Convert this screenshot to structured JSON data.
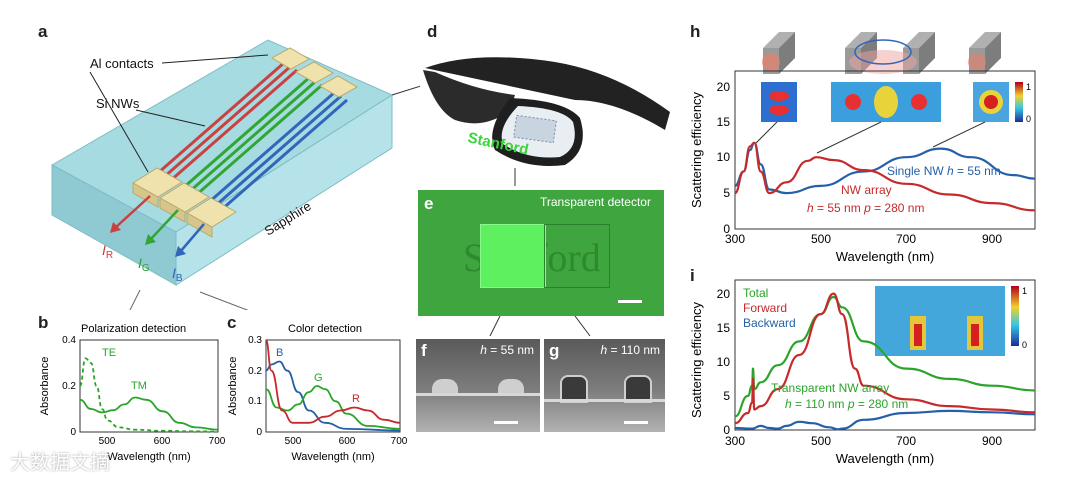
{
  "panel_letters": {
    "a": "a",
    "b": "b",
    "c": "c",
    "d": "d",
    "e": "e",
    "f": "f",
    "g": "g",
    "h": "h",
    "i": "i"
  },
  "panel_a": {
    "al_contacts": "Al contacts",
    "si_nws": "Si NWs",
    "sapphire": "Sapphire",
    "current_labels": [
      {
        "main": "I",
        "sub": "R",
        "color": "#d23a3a"
      },
      {
        "main": "I",
        "sub": "G",
        "color": "#2fa32f"
      },
      {
        "main": "I",
        "sub": "B",
        "color": "#2e64b8"
      }
    ]
  },
  "panel_b": {
    "title": "Polarization detection",
    "ylabel": "Absorbance",
    "xlabel": "Wavelength (nm)",
    "yticks": [
      "0",
      "0.2",
      "0.4"
    ],
    "xticks": [
      "500",
      "600",
      "700"
    ],
    "series_labels": [
      "TE",
      "TM"
    ]
  },
  "panel_c": {
    "title": "Color detection",
    "ylabel": "Absorbance",
    "xlabel": "Wavelength (nm)",
    "yticks": [
      "0",
      "0.1",
      "0.2",
      "0.3"
    ],
    "xticks": [
      "500",
      "600",
      "700"
    ],
    "series_labels": [
      "B",
      "G",
      "R"
    ]
  },
  "panel_d": {
    "logo_text": "Stanford"
  },
  "panel_e": {
    "caption": "Transparent detector",
    "background_text": "Stanford"
  },
  "panel_f": {
    "h_label": "h",
    "h_value": " = 55 nm"
  },
  "panel_g": {
    "h_label": "h",
    "h_value": " = 110 nm"
  },
  "panel_h": {
    "ylabel": "Scattering efficiency",
    "xlabel": "Wavelength (nm)",
    "yticks": [
      "0",
      "5",
      "10",
      "15",
      "20"
    ],
    "xticks": [
      "300",
      "500",
      "700",
      "900"
    ],
    "single_nw": {
      "text": "Single NW ",
      "var": "h",
      "rest": " = 55 nm"
    },
    "nw_array_title": "NW array",
    "nw_array_params": {
      "var1": "h",
      "rest1": " = 55 nm ",
      "var2": "p",
      "rest2": " = 280 nm"
    },
    "colorbar": [
      "1",
      "0"
    ]
  },
  "panel_i": {
    "ylabel": "Scattering efficiency",
    "xlabel": "Wavelength (nm)",
    "yticks": [
      "0",
      "5",
      "10",
      "15",
      "20"
    ],
    "xticks": [
      "300",
      "500",
      "700",
      "900"
    ],
    "legend": [
      "Total",
      "Forward",
      "Backward"
    ],
    "array_title": "Transparent NW array",
    "array_params": {
      "var1": "h",
      "rest1": " = 110 nm  ",
      "var2": "p",
      "rest2": " = 280 nm"
    },
    "colorbar": [
      "1",
      "0"
    ]
  },
  "watermark": "大数据文摘",
  "colors": {
    "red": "#c62a2a",
    "green": "#2aa52a",
    "blue": "#2660a8",
    "cyan_block": "#9fd6de"
  },
  "chart_data": [
    {
      "type": "line",
      "id": "b",
      "title": "Polarization detection",
      "xlabel": "Wavelength (nm)",
      "ylabel": "Absorbance",
      "xlim": [
        450,
        700
      ],
      "ylim": [
        0,
        0.4
      ],
      "series": [
        {
          "name": "TE",
          "x": [
            450,
            460,
            470,
            480,
            490,
            500,
            520,
            550,
            600,
            650,
            700
          ],
          "y": [
            0.2,
            0.32,
            0.3,
            0.2,
            0.1,
            0.05,
            0.02,
            0.01,
            0.005,
            0.003,
            0.002
          ]
        },
        {
          "name": "TM",
          "x": [
            450,
            470,
            490,
            510,
            530,
            550,
            570,
            600,
            630,
            660,
            700
          ],
          "y": [
            0.14,
            0.1,
            0.085,
            0.095,
            0.12,
            0.15,
            0.14,
            0.09,
            0.04,
            0.02,
            0.01
          ]
        }
      ]
    },
    {
      "type": "line",
      "id": "c",
      "title": "Color detection",
      "xlabel": "Wavelength (nm)",
      "ylabel": "Absorbance",
      "xlim": [
        450,
        700
      ],
      "ylim": [
        0,
        0.3
      ],
      "series": [
        {
          "name": "B",
          "x": [
            450,
            460,
            475,
            490,
            510,
            530,
            560,
            600,
            700
          ],
          "y": [
            0.2,
            0.22,
            0.23,
            0.2,
            0.13,
            0.07,
            0.03,
            0.01,
            0.005
          ]
        },
        {
          "name": "G",
          "x": [
            450,
            470,
            490,
            510,
            530,
            545,
            560,
            580,
            600,
            640,
            700
          ],
          "y": [
            0.14,
            0.08,
            0.07,
            0.09,
            0.13,
            0.15,
            0.14,
            0.1,
            0.06,
            0.02,
            0.01
          ]
        },
        {
          "name": "R",
          "x": [
            450,
            460,
            480,
            500,
            530,
            560,
            590,
            615,
            640,
            670,
            700
          ],
          "y": [
            0.3,
            0.2,
            0.07,
            0.03,
            0.03,
            0.05,
            0.07,
            0.08,
            0.07,
            0.04,
            0.03
          ]
        }
      ]
    },
    {
      "type": "line",
      "id": "h",
      "xlabel": "Wavelength (nm)",
      "ylabel": "Scattering efficiency",
      "xlim": [
        300,
        1000
      ],
      "ylim": [
        0,
        22
      ],
      "series": [
        {
          "name": "Single NW",
          "x": [
            300,
            320,
            335,
            345,
            360,
            380,
            420,
            500,
            600,
            700,
            780,
            850,
            950,
            1000
          ],
          "y": [
            6,
            8,
            11,
            12,
            9,
            5.5,
            5,
            6,
            8,
            10,
            11.2,
            10,
            7.5,
            7
          ]
        },
        {
          "name": "NW array",
          "x": [
            300,
            320,
            335,
            345,
            360,
            380,
            420,
            470,
            490,
            530,
            600,
            700,
            800,
            900,
            1000
          ],
          "y": [
            5,
            8,
            11.5,
            12,
            8,
            5,
            6.5,
            9.5,
            10,
            9.6,
            8.2,
            6.3,
            4.8,
            3.6,
            2.6
          ]
        }
      ]
    },
    {
      "type": "line",
      "id": "i",
      "xlabel": "Wavelength (nm)",
      "ylabel": "Scattering efficiency",
      "xlim": [
        300,
        1000
      ],
      "ylim": [
        0,
        22
      ],
      "series": [
        {
          "name": "Total",
          "x": [
            300,
            330,
            340,
            342,
            345,
            360,
            400,
            450,
            500,
            530,
            550,
            600,
            700,
            800,
            900,
            1000
          ],
          "y": [
            2,
            5,
            6.5,
            9,
            6,
            7,
            9.5,
            13,
            17,
            19.5,
            18,
            13,
            9,
            7.5,
            6.5,
            5.8
          ]
        },
        {
          "name": "Forward",
          "x": [
            300,
            330,
            340,
            342,
            345,
            360,
            400,
            450,
            500,
            530,
            550,
            580,
            600,
            700,
            800,
            900,
            1000
          ],
          "y": [
            1,
            2.5,
            4,
            7.5,
            3,
            3.5,
            6,
            11,
            17,
            20,
            17,
            9,
            6.5,
            4.5,
            3.5,
            3,
            2.6
          ]
        },
        {
          "name": "Backward",
          "x": [
            300,
            340,
            360,
            380,
            400,
            420,
            450,
            480,
            520,
            540,
            550,
            600,
            700,
            800,
            900,
            1000
          ],
          "y": [
            0.3,
            0.2,
            0.6,
            0.3,
            0.2,
            0.6,
            1.2,
            1,
            0.4,
            0.1,
            0.2,
            1.5,
            2.5,
            2.8,
            2.6,
            2.3
          ]
        }
      ]
    }
  ]
}
